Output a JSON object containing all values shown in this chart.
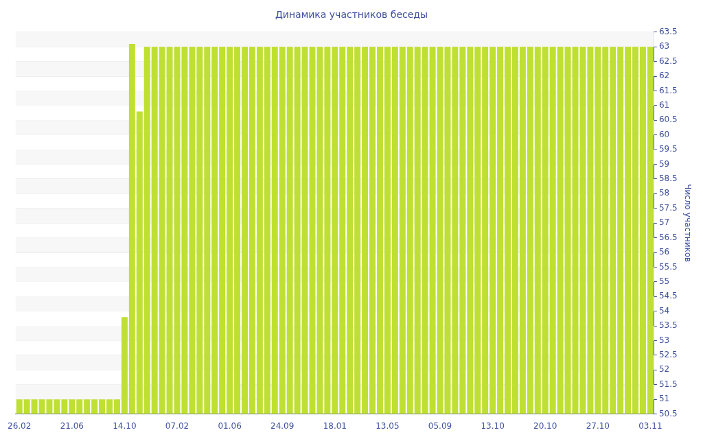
{
  "chart_data": {
    "type": "bar",
    "title": "Динамика участников беседы",
    "ylabel": "Число участников",
    "categories": [
      "26.02",
      null,
      null,
      null,
      null,
      null,
      null,
      "21.06",
      null,
      null,
      null,
      null,
      null,
      null,
      "14.10",
      null,
      null,
      null,
      null,
      null,
      null,
      "07.02",
      null,
      null,
      null,
      null,
      null,
      null,
      "01.06",
      null,
      null,
      null,
      null,
      null,
      null,
      "24.09",
      null,
      null,
      null,
      null,
      null,
      null,
      "18.01",
      null,
      null,
      null,
      null,
      null,
      null,
      "13.05",
      null,
      null,
      null,
      null,
      null,
      null,
      "05.09",
      null,
      null,
      null,
      null,
      null,
      null,
      "13.10",
      null,
      null,
      null,
      null,
      null,
      null,
      "20.10",
      null,
      null,
      null,
      null,
      null,
      null,
      "27.10",
      null,
      null,
      null,
      null,
      null,
      null,
      "03.11"
    ],
    "values": [
      51,
      51,
      51,
      51,
      51,
      51,
      51,
      51,
      51,
      51,
      51,
      51,
      51,
      51,
      53.8,
      63.1,
      60.8,
      63,
      63,
      63,
      63,
      63,
      63,
      63,
      63,
      63,
      63,
      63,
      63,
      63,
      63,
      63,
      63,
      63,
      63,
      63,
      63,
      63,
      63,
      63,
      63,
      63,
      63,
      63,
      63,
      63,
      63,
      63,
      63,
      63,
      63,
      63,
      63,
      63,
      63,
      63,
      63,
      63,
      63,
      63,
      63,
      63,
      63,
      63,
      63,
      63,
      63,
      63,
      63,
      63,
      63,
      63,
      63,
      63,
      63,
      63,
      63,
      63,
      63,
      63,
      63,
      63,
      63,
      63,
      63
    ],
    "color": "#bfe032",
    "ylim": [
      50.5,
      63.5
    ],
    "yticks": [
      50.5,
      51,
      51.5,
      52,
      52.5,
      53,
      53.5,
      54,
      54.5,
      55,
      55.5,
      56,
      56.5,
      57,
      57.5,
      58,
      58.5,
      59,
      59.5,
      60,
      60.5,
      61,
      61.5,
      62,
      62.5,
      63,
      63.5
    ],
    "grid": "y",
    "legend": false
  }
}
